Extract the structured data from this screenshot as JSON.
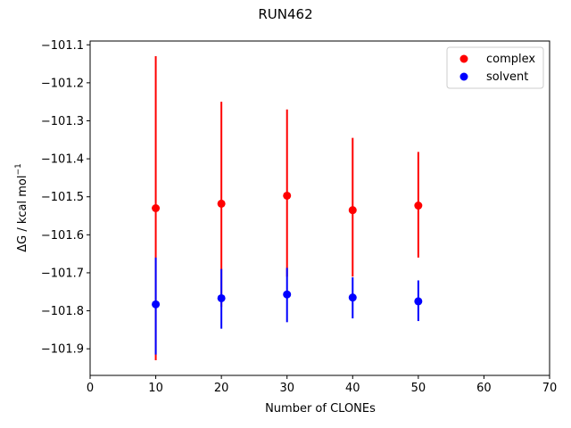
{
  "chart_data": {
    "type": "scatter",
    "title": "RUN462",
    "xlabel": "Number of CLONEs",
    "ylabel_main": "ΔG / kcal mol",
    "ylabel_sup": "−1",
    "xlim": [
      0,
      70
    ],
    "ylim": [
      -101.97,
      -101.09
    ],
    "xticks": [
      0,
      10,
      20,
      30,
      40,
      50,
      60,
      70
    ],
    "yticks": [
      -101.1,
      -101.2,
      -101.3,
      -101.4,
      -101.5,
      -101.6,
      -101.7,
      -101.8,
      -101.9
    ],
    "ytick_labels": [
      "−101.1",
      "−101.2",
      "−101.3",
      "−101.4",
      "−101.5",
      "−101.6",
      "−101.7",
      "−101.8",
      "−101.9"
    ],
    "grid": false,
    "legend_position": "top-right",
    "series": [
      {
        "name": "complex",
        "color": "#ff0000",
        "x": [
          10,
          20,
          30,
          40,
          50
        ],
        "y": [
          -101.53,
          -101.518,
          -101.497,
          -101.535,
          -101.523
        ],
        "err_low": [
          -101.93,
          -101.79,
          -101.71,
          -101.71,
          -101.66
        ],
        "err_high": [
          -101.13,
          -101.25,
          -101.27,
          -101.345,
          -101.382
        ]
      },
      {
        "name": "solvent",
        "color": "#0000ff",
        "x": [
          10,
          20,
          30,
          40,
          50
        ],
        "y": [
          -101.783,
          -101.767,
          -101.757,
          -101.765,
          -101.775
        ],
        "err_low": [
          -101.915,
          -101.847,
          -101.83,
          -101.82,
          -101.827
        ],
        "err_high": [
          -101.66,
          -101.69,
          -101.687,
          -101.712,
          -101.72
        ]
      }
    ]
  }
}
